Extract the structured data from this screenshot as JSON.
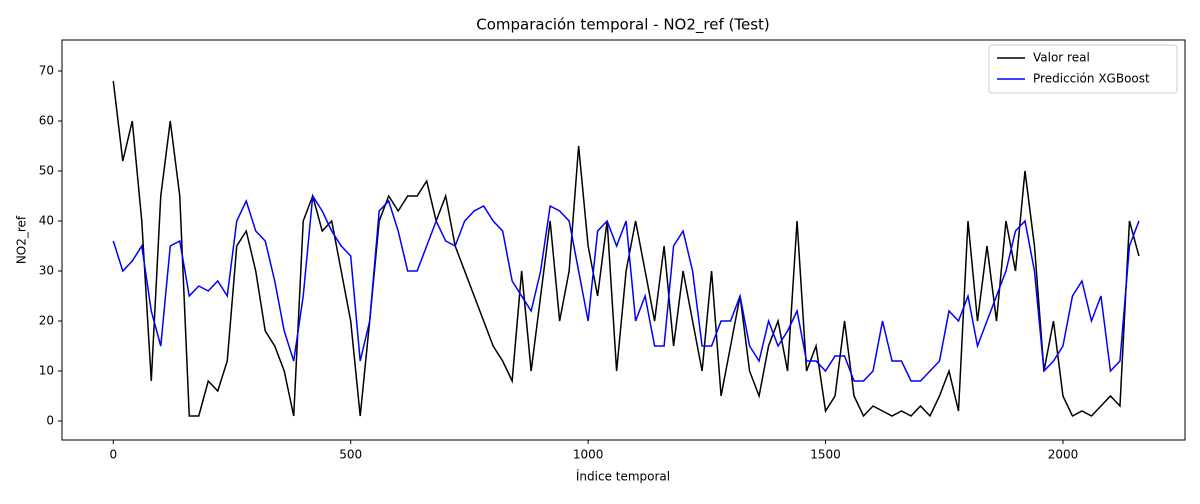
{
  "chart_data": {
    "type": "line",
    "title": "Comparación temporal - NO2_ref (Test)",
    "x_label": "Índice temporal",
    "y_label": "NO2_ref",
    "x": [
      0,
      20,
      40,
      60,
      80,
      100,
      120,
      140,
      160,
      180,
      200,
      220,
      240,
      260,
      280,
      300,
      320,
      340,
      360,
      380,
      400,
      420,
      440,
      460,
      480,
      500,
      520,
      540,
      560,
      580,
      600,
      620,
      640,
      660,
      680,
      700,
      720,
      740,
      760,
      780,
      800,
      820,
      840,
      860,
      880,
      900,
      920,
      940,
      960,
      980,
      1000,
      1020,
      1040,
      1060,
      1080,
      1100,
      1120,
      1140,
      1160,
      1180,
      1200,
      1220,
      1240,
      1260,
      1280,
      1300,
      1320,
      1340,
      1360,
      1380,
      1400,
      1420,
      1440,
      1460,
      1480,
      1500,
      1520,
      1540,
      1560,
      1580,
      1600,
      1620,
      1640,
      1660,
      1680,
      1700,
      1720,
      1740,
      1760,
      1780,
      1800,
      1820,
      1840,
      1860,
      1880,
      1900,
      1920,
      1940,
      1960,
      1980,
      2000,
      2020,
      2040,
      2060,
      2080,
      2100,
      2120,
      2140,
      2160
    ],
    "series": [
      {
        "name": "Valor real",
        "color": "#000000",
        "values": [
          68,
          52,
          60,
          40,
          8,
          45,
          60,
          45,
          1,
          1,
          8,
          6,
          12,
          35,
          38,
          30,
          18,
          15,
          10,
          1,
          40,
          45,
          38,
          40,
          30,
          20,
          1,
          20,
          40,
          45,
          42,
          45,
          45,
          48,
          40,
          45,
          35,
          30,
          25,
          20,
          15,
          12,
          8,
          30,
          10,
          25,
          40,
          20,
          30,
          55,
          35,
          25,
          40,
          10,
          30,
          40,
          30,
          20,
          35,
          15,
          30,
          20,
          10,
          30,
          5,
          15,
          25,
          10,
          5,
          15,
          20,
          10,
          40,
          10,
          15,
          2,
          5,
          20,
          5,
          1,
          3,
          2,
          1,
          2,
          1,
          3,
          1,
          5,
          10,
          2,
          40,
          20,
          35,
          20,
          40,
          30,
          50,
          35,
          10,
          20,
          5,
          1,
          2,
          1,
          3,
          5,
          3,
          40,
          33
        ]
      },
      {
        "name": "Predicción XGBoost",
        "color": "#0000ff",
        "values": [
          36,
          30,
          32,
          35,
          22,
          15,
          35,
          36,
          25,
          27,
          26,
          28,
          25,
          40,
          44,
          38,
          36,
          28,
          18,
          12,
          25,
          45,
          42,
          38,
          35,
          33,
          12,
          20,
          42,
          44,
          38,
          30,
          30,
          35,
          40,
          36,
          35,
          40,
          42,
          43,
          40,
          38,
          28,
          25,
          22,
          30,
          43,
          42,
          40,
          30,
          20,
          38,
          40,
          35,
          40,
          20,
          25,
          15,
          15,
          35,
          38,
          30,
          15,
          15,
          20,
          20,
          25,
          15,
          12,
          20,
          15,
          18,
          22,
          12,
          12,
          10,
          13,
          13,
          8,
          8,
          10,
          20,
          12,
          12,
          8,
          8,
          10,
          12,
          22,
          20,
          25,
          15,
          20,
          25,
          30,
          38,
          40,
          30,
          10,
          12,
          15,
          25,
          28,
          20,
          25,
          10,
          12,
          35,
          40
        ]
      }
    ],
    "xlim": [
      -108,
      2257
    ],
    "ylim": [
      -3.8,
      76.2
    ],
    "xticks": [
      0,
      500,
      1000,
      1500,
      2000
    ],
    "yticks": [
      0,
      10,
      20,
      30,
      40,
      50,
      60,
      70
    ],
    "legend": "upper right"
  }
}
